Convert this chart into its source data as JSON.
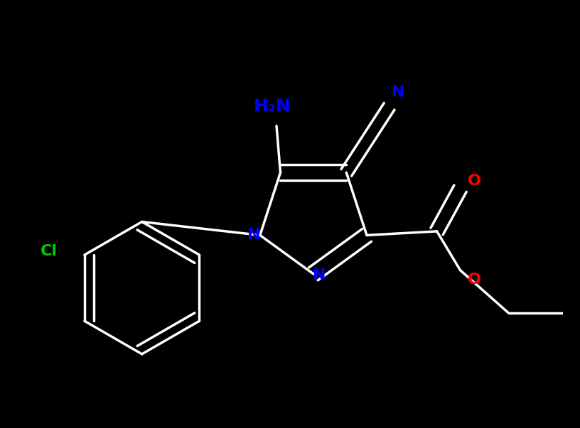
{
  "background_color": "#000000",
  "bond_color": "#ffffff",
  "bond_width": 2.5,
  "atom_colors": {
    "C": "#ffffff",
    "N": "#0000ff",
    "O": "#ff0000",
    "Cl": "#00cc00",
    "H": "#ffffff"
  },
  "font_size_atom": 18,
  "font_size_label": 16
}
